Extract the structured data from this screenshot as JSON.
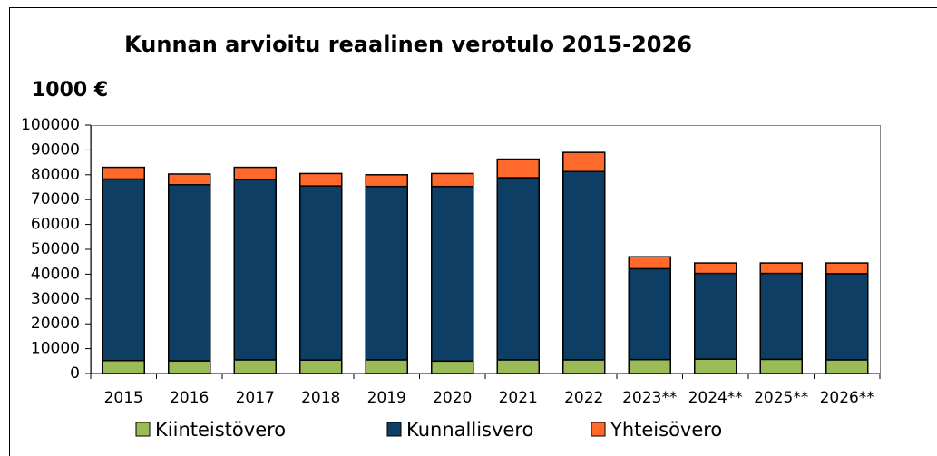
{
  "chart_data": {
    "type": "stacked_bar",
    "title": "Kunnan arvioitu reaalinen verotulo 2015-2026",
    "y_label": "1000 €",
    "categories": [
      "2015",
      "2016",
      "2017",
      "2018",
      "2019",
      "2020",
      "2021",
      "2022",
      "2023**",
      "2024**",
      "2025**",
      "2026**"
    ],
    "series": [
      {
        "name": "Kiinteistövero",
        "color": "#9bbb59",
        "values": [
          5200,
          5100,
          5500,
          5400,
          5500,
          5000,
          5500,
          5500,
          5600,
          5800,
          5700,
          5500
        ]
      },
      {
        "name": "Kunnallisvero",
        "color": "#0e3e63",
        "values": [
          73100,
          70900,
          72500,
          70100,
          69800,
          70300,
          73300,
          75800,
          36600,
          34500,
          34600,
          34700
        ]
      },
      {
        "name": "Yhteisövero",
        "color": "#ff6a2c",
        "values": [
          4700,
          4300,
          5000,
          5000,
          4700,
          5200,
          7500,
          7700,
          4800,
          4200,
          4200,
          4300
        ]
      }
    ],
    "ylim": [
      0,
      100000
    ],
    "yticks": [
      0,
      10000,
      20000,
      30000,
      40000,
      50000,
      60000,
      70000,
      80000,
      90000,
      100000
    ],
    "legend": "bottom"
  }
}
